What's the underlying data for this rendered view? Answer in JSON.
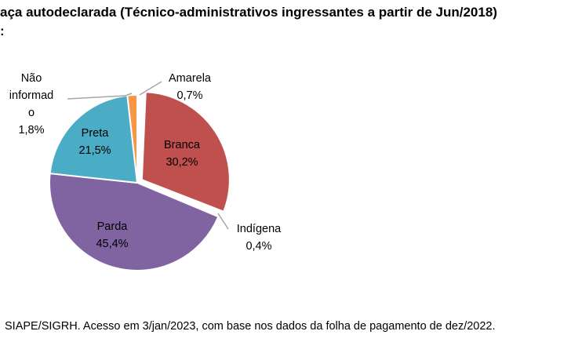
{
  "header": {
    "title": "aça autodeclarada (Técnico-administrativos ingressantes a partir de Jun/2018)",
    "title_line2": ":"
  },
  "footer": {
    "source": "SIAPE/SIGRH. Acesso em 3/jan/2023, com base nos dados da folha de pagamento de dez/2022."
  },
  "chart_data": {
    "type": "pie",
    "start_angle_deg": 0,
    "direction": "clockwise",
    "slices": [
      {
        "name": "Amarela",
        "value": 0.7,
        "label": "0,7%",
        "color": "#ffffff"
      },
      {
        "name": "Branca",
        "value": 30.2,
        "label": "30,2%",
        "color": "#c0504d"
      },
      {
        "name": "Indígena",
        "value": 0.4,
        "label": "0,4%",
        "color": "#ffffff"
      },
      {
        "name": "Parda",
        "value": 45.4,
        "label": "45,4%",
        "color": "#8064a2"
      },
      {
        "name": "Preta",
        "value": 21.5,
        "label": "21,5%",
        "color": "#4bacc6"
      },
      {
        "name": "Não informado",
        "value": 1.8,
        "label": "1,8%",
        "color": "#f79646"
      }
    ],
    "labels": {
      "nao_informado_lines": [
        "Não",
        "informad",
        "o"
      ]
    },
    "legend": "none"
  }
}
